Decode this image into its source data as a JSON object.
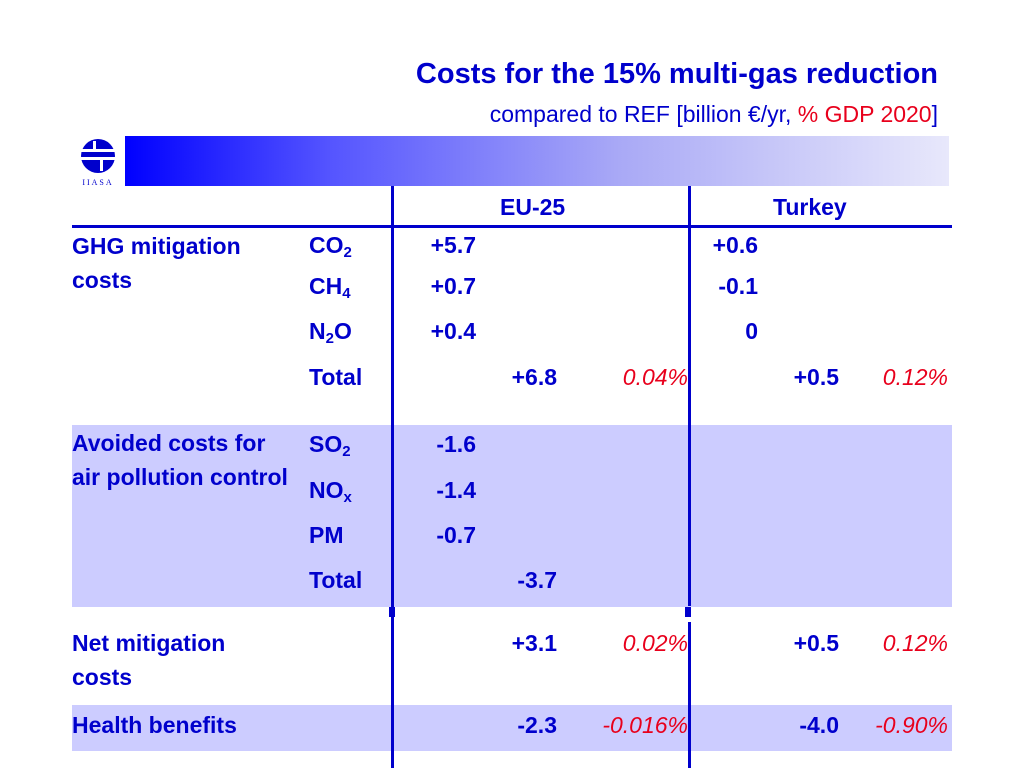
{
  "title": "Costs for the 15% multi-gas reduction",
  "subtitle": {
    "prefix": "compared to REF [billion €/yr, ",
    "highlight": "% GDP 2020",
    "suffix": "]"
  },
  "logo": {
    "text": "IIASA",
    "icon": "iiasa-logo"
  },
  "colors": {
    "text": "#0000cc",
    "accent_red": "#e8001c",
    "band": "#ccccff"
  },
  "table": {
    "headers": {
      "eu": "EU-25",
      "turkey": "Turkey"
    },
    "ghg": {
      "label": "GHG mitigation costs",
      "rows": [
        {
          "gas": "CO",
          "sub": "2",
          "eu": "+5.7",
          "tr": "+0.6"
        },
        {
          "gas": "CH",
          "sub": "4",
          "eu": "+0.7",
          "tr": "-0.1"
        },
        {
          "gas": "N",
          "sub": "2",
          "post": "O",
          "eu": "+0.4",
          "tr": "0"
        }
      ],
      "total": {
        "label": "Total",
        "eu": "+6.8",
        "eu_pct": "0.04%",
        "tr": "+0.5",
        "tr_pct": "0.12%"
      }
    },
    "air": {
      "label": "Avoided costs for air pollution control",
      "rows": [
        {
          "gas": "SO",
          "sub": "2",
          "eu": "-1.6"
        },
        {
          "gas": "NO",
          "sub": "x",
          "eu": "-1.4"
        },
        {
          "gas": "PM",
          "eu": "-0.7"
        }
      ],
      "total": {
        "label": "Total",
        "eu": "-3.7"
      }
    },
    "net": {
      "label": "Net mitigation costs",
      "eu": "+3.1",
      "eu_pct": "0.02%",
      "tr": "+0.5",
      "tr_pct": "0.12%"
    },
    "health": {
      "label": "Health benefits",
      "eu": "-2.3",
      "eu_pct": "-0.016%",
      "tr": "-4.0",
      "tr_pct": "-0.90%"
    }
  }
}
